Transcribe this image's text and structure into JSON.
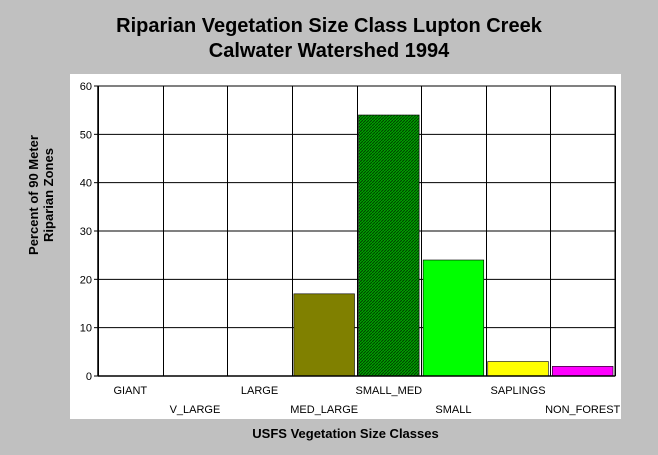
{
  "chart_data": {
    "type": "bar",
    "title": [
      "Riparian Vegetation Size Class Lupton Creek",
      "Calwater Watershed 1994"
    ],
    "ylabel": [
      "Percent of 90 Meter",
      "Riparian Zones"
    ],
    "xlabel": "USFS Vegetation Size Classes",
    "categories": [
      "GIANT",
      "V_LARGE",
      "LARGE",
      "MED_LARGE",
      "SMALL_MED",
      "SMALL",
      "SAPLINGS",
      "NON_FOREST"
    ],
    "values": [
      0,
      0,
      0,
      17,
      54,
      24,
      3,
      2
    ],
    "colors": [
      "#000000",
      "#000000",
      "#000000",
      "#808000",
      "#008000",
      "#00ff00",
      "#ffff00",
      "#ff00ff"
    ],
    "ylim": [
      0,
      60
    ],
    "yticks": [
      0,
      10,
      20,
      30,
      40,
      50,
      60
    ],
    "grid": true
  }
}
